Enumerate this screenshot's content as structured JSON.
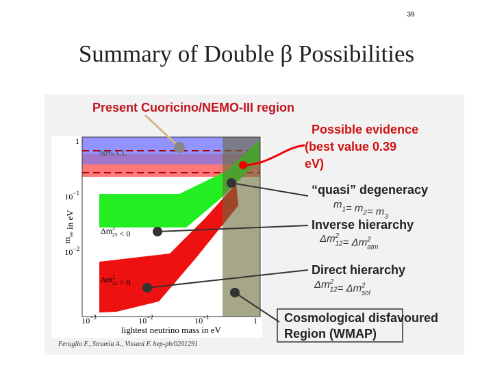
{
  "slide_number": "39",
  "title": "Summary of Double β Possibilities",
  "figure": {
    "annotations": {
      "present": "Present Cuoricino/NEMO-III region",
      "evidence": [
        "Possible evidence",
        "(best value  0.39",
        "eV)"
      ],
      "quasi": {
        "label": "“quasi” degeneracy",
        "formula": [
          {
            "t": "m",
            "sub": "1"
          },
          {
            "t": "= m",
            "sub": "2"
          },
          {
            "t": "= m",
            "sub": "3"
          }
        ]
      },
      "inverse": {
        "label": "Inverse hierarchy",
        "formula": [
          {
            "t": "Δm",
            "sup": "2",
            "sub": "12"
          },
          {
            "t": "= Δm",
            "sup": "2",
            "sub": "atm"
          }
        ]
      },
      "direct": {
        "label": "Direct hierarchy",
        "formula": [
          {
            "t": "Δm",
            "sup": "2",
            "sub": "12"
          },
          {
            "t": "= Δm",
            "sup": "2",
            "sub": "sol"
          }
        ]
      },
      "cosmo": [
        "Cosmological disfavoured",
        "Region (WMAP)"
      ]
    },
    "plot": {
      "cl_label": "90% CL",
      "inverted_label": {
        "t": "Δm",
        "sup": "2",
        "sub": "23",
        "rest": " < 0"
      },
      "normal_label": {
        "t": "Δm",
        "sup": "2",
        "sub": "23",
        "rest": " > 0"
      },
      "x_label": "lightest neutrino mass in eV",
      "y_label": {
        "t": "m",
        "sub": "ee",
        "rest": " in eV"
      },
      "x_ticks": [
        {
          "base": "10",
          "exp": "−3"
        },
        {
          "base": "10",
          "exp": "−2"
        },
        {
          "base": "10",
          "exp": "−1"
        },
        {
          "base": "1",
          "exp": ""
        }
      ],
      "y_ticks": [
        {
          "base": "1",
          "exp": ""
        },
        {
          "base": "10",
          "exp": "−1"
        },
        {
          "base": "10",
          "exp": "−2"
        }
      ],
      "reference": "Feruglio F., Strumia A., Vissani F. hep-ph/0201291"
    }
  }
}
